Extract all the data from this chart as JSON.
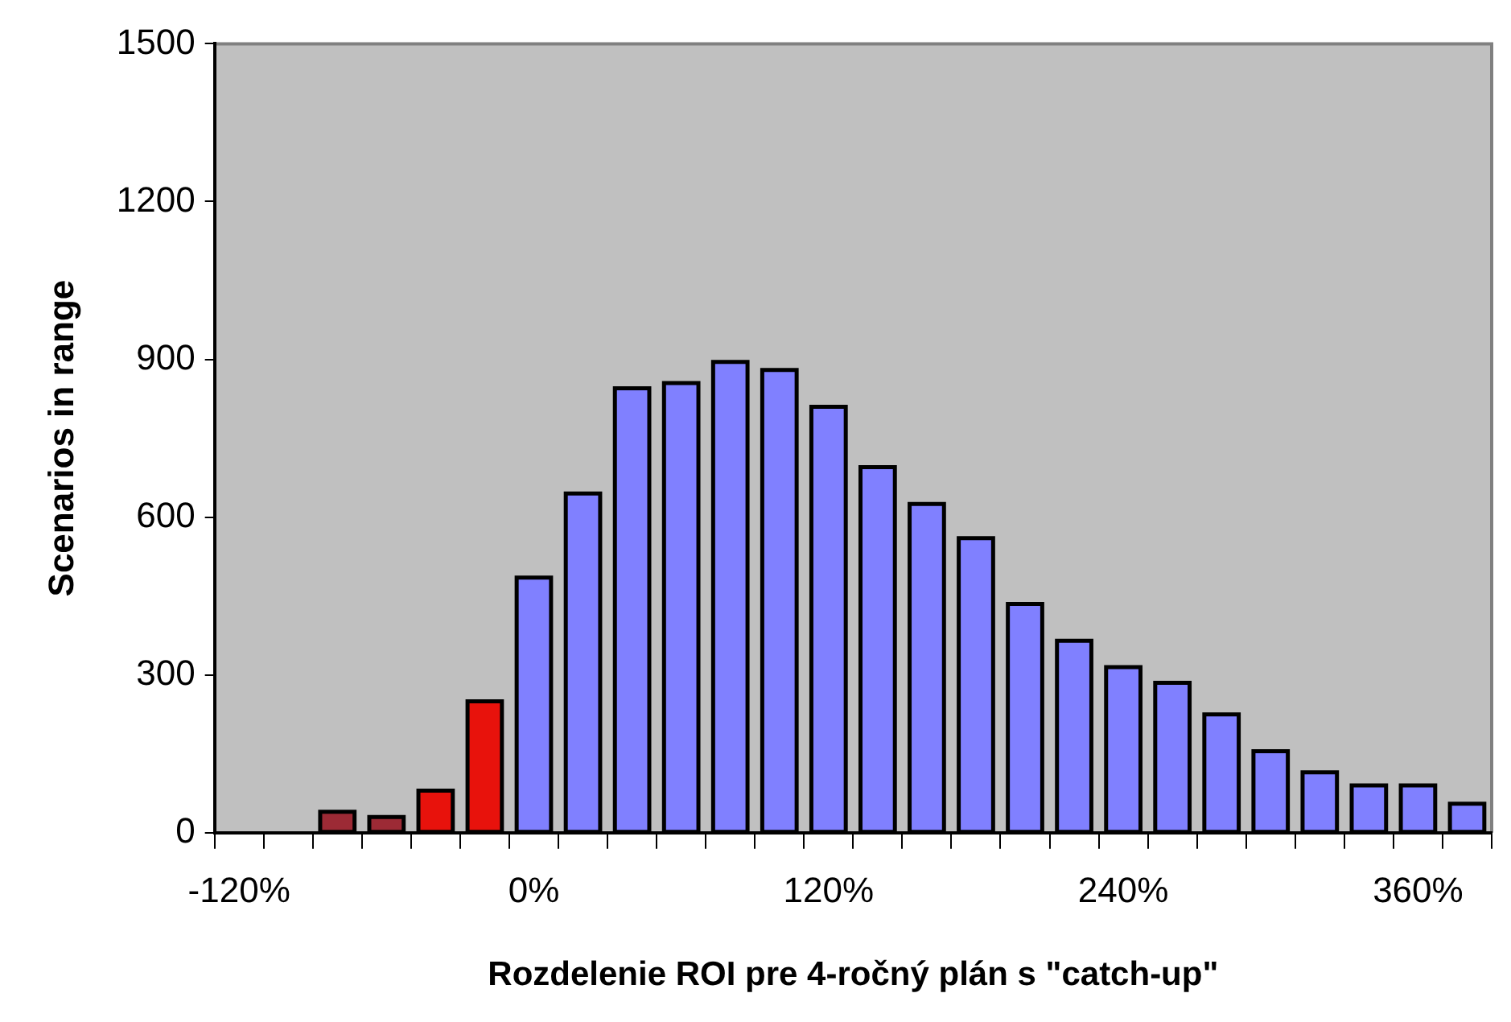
{
  "chart_data": {
    "type": "bar",
    "xlabel": "Rozdelenie ROI pre 4-ročný plán s \"catch-up\"",
    "ylabel": "Scenarios in range",
    "categories": [
      "-120%",
      null,
      null,
      null,
      null,
      null,
      "0%",
      null,
      null,
      null,
      null,
      null,
      "120%",
      null,
      null,
      null,
      null,
      null,
      "240%",
      null,
      null,
      null,
      null,
      null,
      "360%",
      null
    ],
    "values": [
      null,
      null,
      40,
      30,
      80,
      250,
      485,
      645,
      845,
      855,
      895,
      880,
      810,
      695,
      625,
      560,
      435,
      365,
      315,
      285,
      225,
      155,
      115,
      90,
      90,
      55
    ],
    "colors": [
      "#8080ff",
      "#8080ff",
      "#9c2a35",
      "#9c2a35",
      "#e8120c",
      "#e8120c",
      "#8080ff",
      "#8080ff",
      "#8080ff",
      "#8080ff",
      "#8080ff",
      "#8080ff",
      "#8080ff",
      "#8080ff",
      "#8080ff",
      "#8080ff",
      "#8080ff",
      "#8080ff",
      "#8080ff",
      "#8080ff",
      "#8080ff",
      "#8080ff",
      "#8080ff",
      "#8080ff",
      "#8080ff",
      "#8080ff"
    ],
    "ylim": [
      0,
      1500
    ],
    "yticks": [
      0,
      300,
      600,
      900,
      1200,
      1500
    ],
    "grid": false,
    "legend": false
  }
}
